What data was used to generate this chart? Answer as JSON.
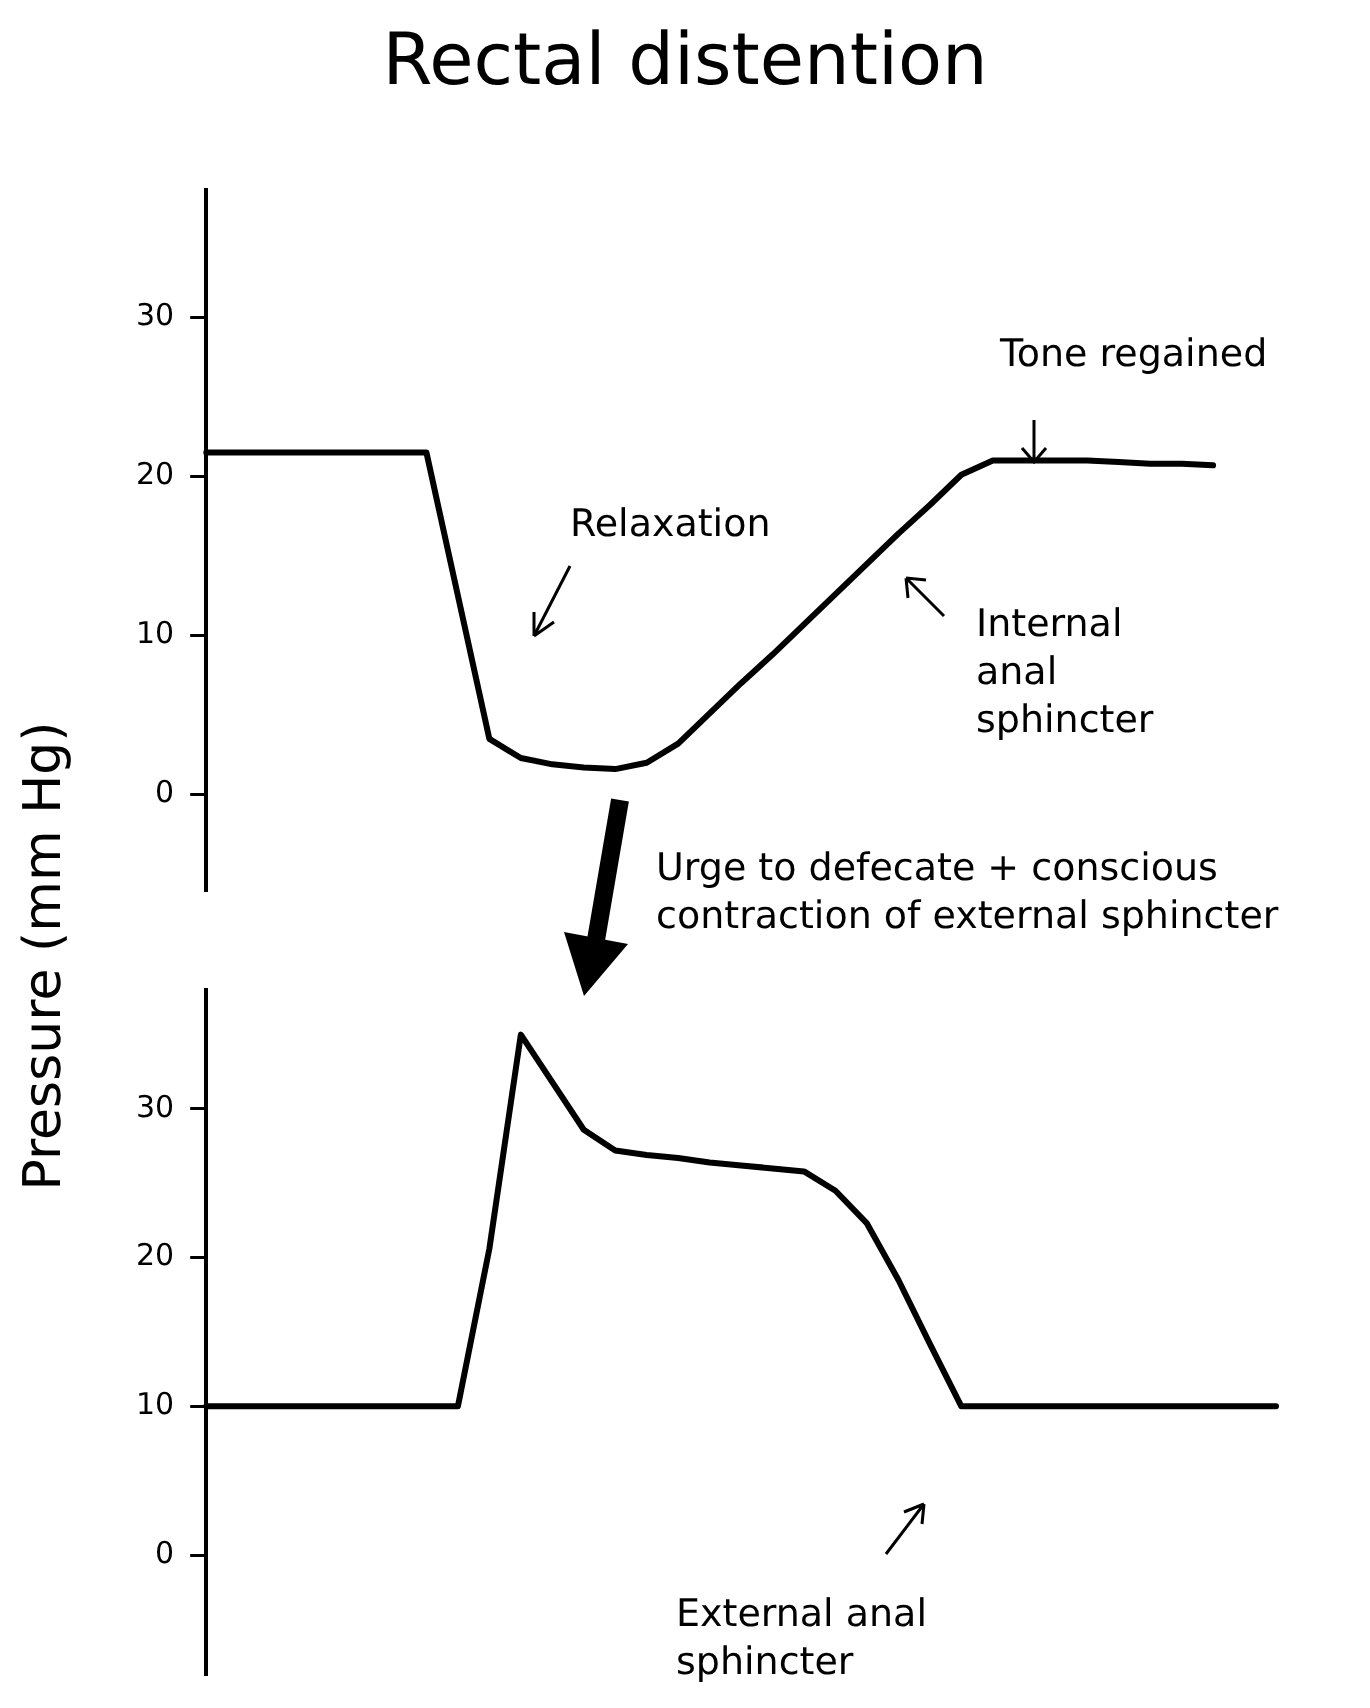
{
  "chart_data": [
    {
      "type": "line",
      "title": "Rectal distention",
      "ylabel": "Pressure (mm Hg)",
      "categories": [
        null,
        null,
        null,
        null,
        null,
        null,
        null,
        null,
        null,
        null,
        null,
        null,
        null,
        null,
        null,
        null,
        null,
        null,
        null,
        null,
        null,
        null,
        null,
        null,
        null,
        null,
        null,
        null,
        null,
        null,
        null,
        null,
        null,
        null,
        null
      ],
      "values": [
        21.5,
        21.5,
        21.5,
        21.5,
        21.5,
        21.5,
        21.5,
        21.5,
        12.5,
        3.5,
        2.3,
        1.9,
        1.7,
        1.6,
        2,
        3.2,
        5.1,
        7,
        8.8,
        10.7,
        12.6,
        14.5,
        16.4,
        18.2,
        20.1,
        21,
        21,
        21,
        21,
        20.9,
        20.8,
        20.8,
        20.7,
        null,
        null
      ],
      "color": "#000000",
      "ylim": [
        -6,
        38
      ],
      "yticks": [
        0,
        10,
        20,
        30
      ],
      "tick_labels": "y",
      "marker": "none",
      "line_style": "solid",
      "annotations": [
        "Relaxation",
        "Tone regained",
        "Internal anal sphincter"
      ]
    },
    {
      "type": "line",
      "categories": [
        null,
        null,
        null,
        null,
        null,
        null,
        null,
        null,
        null,
        null,
        null,
        null,
        null,
        null,
        null,
        null,
        null,
        null,
        null,
        null,
        null,
        null,
        null,
        null,
        null,
        null,
        null,
        null,
        null,
        null,
        null,
        null,
        null,
        null,
        null
      ],
      "values": [
        10,
        10,
        10,
        10,
        10,
        10,
        10,
        10,
        10,
        20.6,
        35,
        31.8,
        28.6,
        27.2,
        26.9,
        26.7,
        26.4,
        26.2,
        26,
        25.8,
        24.5,
        22.3,
        18.5,
        14.2,
        10,
        10,
        10,
        10,
        10,
        10,
        10,
        10,
        10,
        10,
        10
      ],
      "color": "#000000",
      "ylim": [
        -8,
        38
      ],
      "yticks": [
        0,
        10,
        20,
        30
      ],
      "tick_labels": "y",
      "marker": "none",
      "line_style": "solid",
      "annotations": [
        "Urge to defecate + conscious contraction of external sphincter",
        "External anal sphincter"
      ]
    }
  ]
}
